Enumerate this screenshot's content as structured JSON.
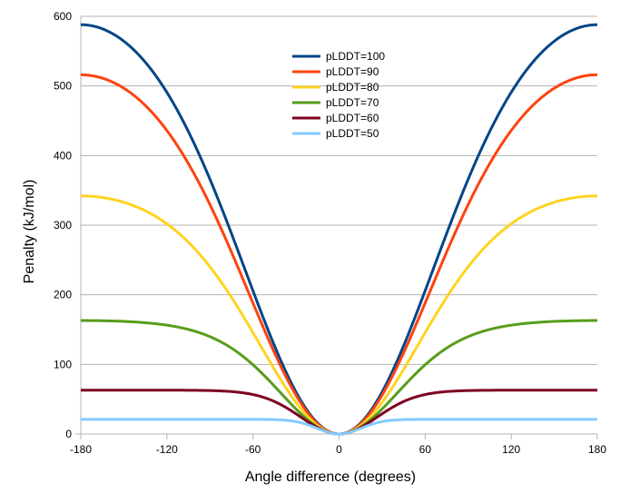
{
  "chart_data": {
    "type": "line",
    "title": "",
    "xlabel": "Angle difference (degrees)",
    "ylabel": "Penalty (kJ/mol)",
    "xlim": [
      -180,
      180
    ],
    "ylim": [
      0,
      600
    ],
    "xticks": [
      -180,
      -120,
      -60,
      0,
      60,
      120,
      180
    ],
    "yticks": [
      0,
      100,
      200,
      300,
      400,
      500,
      600
    ],
    "grid": "horizontal",
    "legend_position": "top-center",
    "series": [
      {
        "name": "pLDDT=100",
        "color": "#004586",
        "plateau": 588,
        "steep": 0.5
      },
      {
        "name": "pLDDT=90",
        "color": "#ff420e",
        "plateau": 516,
        "steep": 0.57
      },
      {
        "name": "pLDDT=80",
        "color": "#ffd320",
        "plateau": 342,
        "steep": 0.86
      },
      {
        "name": "pLDDT=70",
        "color": "#579d1c",
        "plateau": 163,
        "steep": 1.8
      },
      {
        "name": "pLDDT=60",
        "color": "#7e0021",
        "plateau": 63,
        "steep": 4.6
      },
      {
        "name": "pLDDT=50",
        "color": "#83caff",
        "plateau": 21,
        "steep": 14
      }
    ]
  }
}
